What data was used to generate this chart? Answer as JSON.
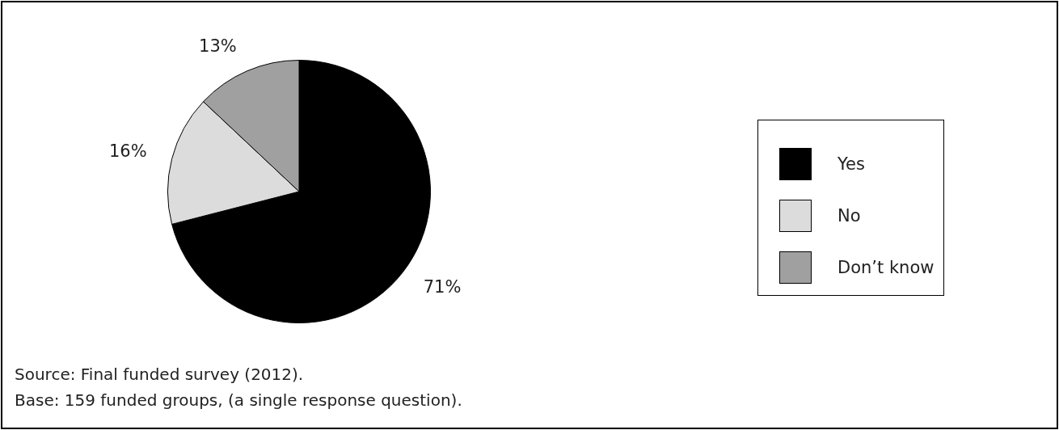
{
  "chart_data": {
    "type": "pie",
    "categories": [
      "Yes",
      "No",
      "Don’t know"
    ],
    "values": [
      71,
      16,
      13
    ],
    "colors": [
      "#000000",
      "#dcdcdc",
      "#a0a0a0"
    ],
    "value_labels": [
      "71%",
      "16%",
      "13%"
    ],
    "legend": "right",
    "annotations": [
      "Source: Final funded survey (2012).",
      "Base: 159 funded groups, (a single response question)."
    ]
  }
}
